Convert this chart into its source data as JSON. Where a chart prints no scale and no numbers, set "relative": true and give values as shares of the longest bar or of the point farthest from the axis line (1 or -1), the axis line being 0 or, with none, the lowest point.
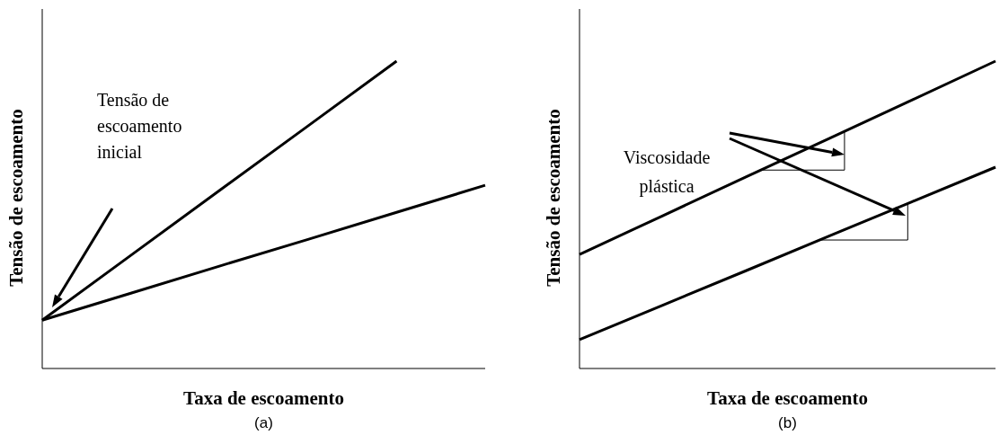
{
  "chart_data": [
    {
      "type": "line",
      "relative": true,
      "categories": [
        null,
        null,
        null,
        null,
        null,
        null
      ],
      "xlabel": "Taxa de escoamento",
      "ylabel": "Tensão de escoamento",
      "annotations": [
        "Tensão de escoamento inicial",
        "(a)"
      ],
      "series": [
        {
          "color": "#000000",
          "values": [
            0.157,
            0.368,
            0.579,
            0.789,
            1.0,
            null
          ]
        },
        {
          "color": "#000000",
          "values": [
            0.157,
            0.245,
            0.333,
            0.42,
            0.508,
            0.596
          ]
        }
      ]
    },
    {
      "type": "line",
      "relative": true,
      "categories": [
        null,
        null,
        null,
        null,
        null,
        null
      ],
      "xlabel": "Taxa de escoamento",
      "ylabel": "Tensão de escoamento",
      "annotations": [
        "Viscosidade plástica",
        "(b)"
      ],
      "series": [
        {
          "color": "#000000",
          "values": [
            0.371,
            0.497,
            0.623,
            0.748,
            0.874,
            1.0
          ]
        },
        {
          "color": "#000000",
          "values": [
            0.094,
            0.206,
            0.318,
            0.431,
            0.543,
            0.655
          ]
        }
      ]
    }
  ]
}
